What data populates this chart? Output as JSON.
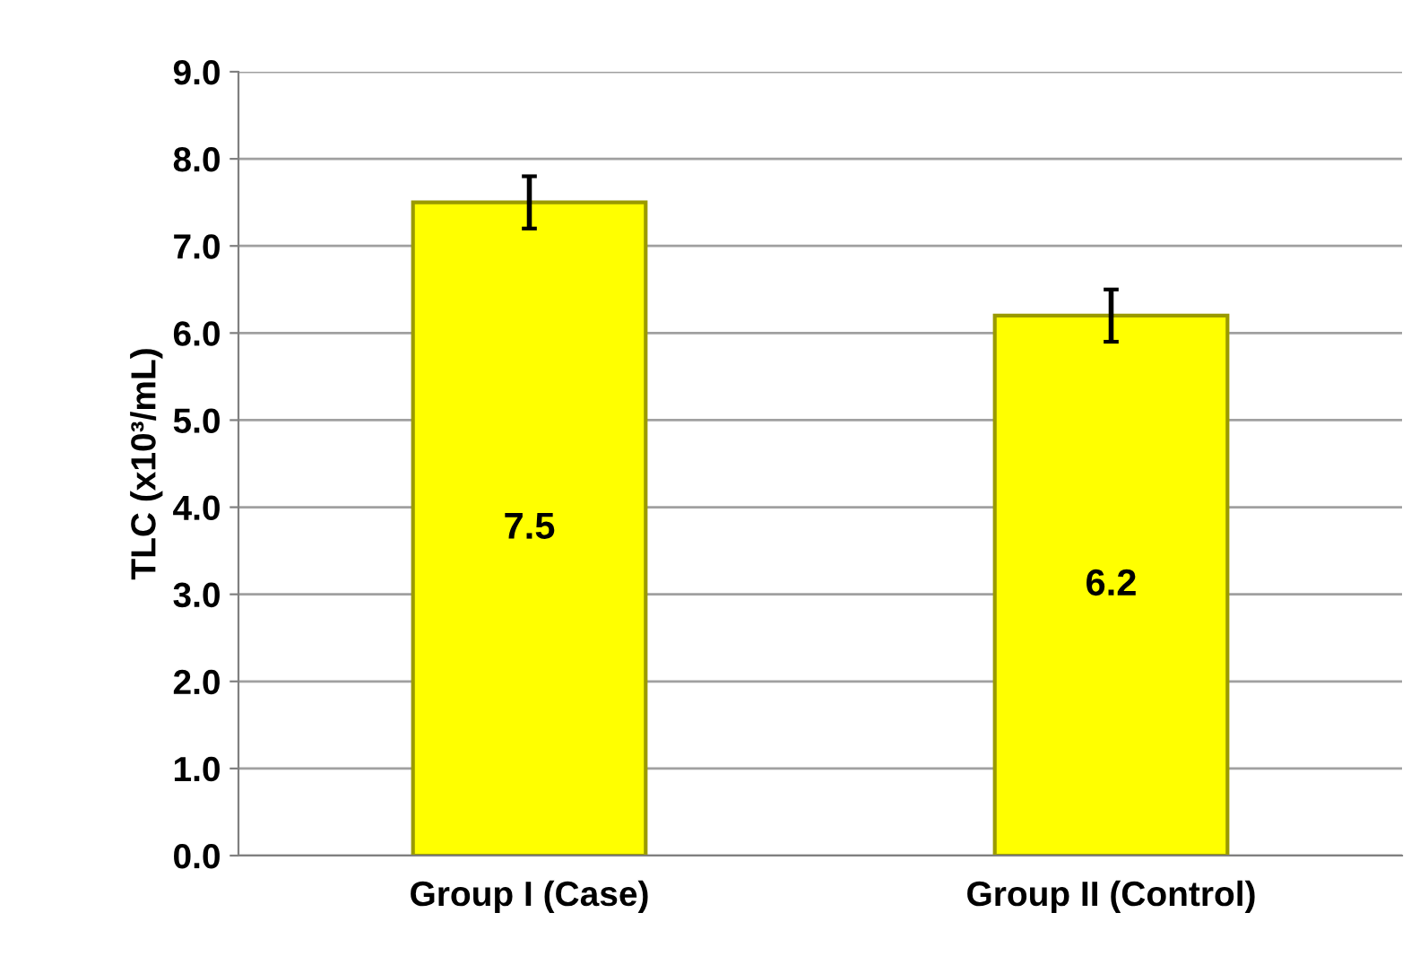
{
  "chart_data": {
    "type": "bar",
    "ylabel": "TLC (x10³/mL)",
    "categories": [
      "Group I (Case)",
      "Group II (Control)"
    ],
    "values": [
      7.5,
      6.2
    ],
    "errors": [
      0.3,
      0.3
    ],
    "color": "#ffff00",
    "data_labels": true,
    "ylim": [
      0,
      9
    ],
    "yticks": [
      {
        "value": 0,
        "label": "0.0"
      },
      {
        "value": 1,
        "label": "1.0"
      },
      {
        "value": 2,
        "label": "2.0"
      },
      {
        "value": 3,
        "label": "3.0"
      },
      {
        "value": 4,
        "label": "4.0"
      },
      {
        "value": 5,
        "label": "5.0"
      },
      {
        "value": 6,
        "label": "6.0"
      },
      {
        "value": 7,
        "label": "7.0"
      },
      {
        "value": 8,
        "label": "8.0"
      },
      {
        "value": 9,
        "label": "9.0"
      }
    ],
    "grid": "y",
    "legend": false
  }
}
